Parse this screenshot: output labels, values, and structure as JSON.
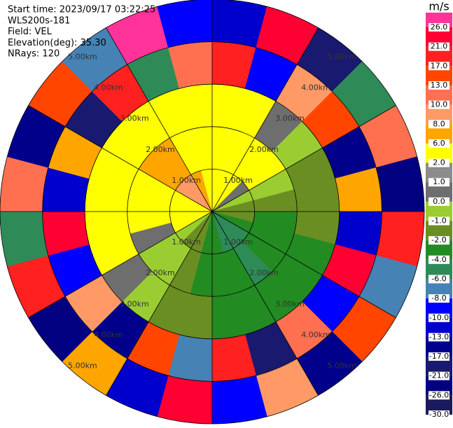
{
  "chart_data": {
    "type": "ppi",
    "header": [
      "Start time: 2023/09/17 03:22:25",
      "WLS200s-181",
      "Field: VEL",
      "Elevation(deg): 35.30",
      "NRays: 120"
    ],
    "azimuth_bins": [
      0,
      15,
      30,
      45,
      60,
      75,
      90,
      105,
      120,
      135,
      150,
      165,
      180,
      195,
      210,
      225,
      240,
      255,
      270,
      285,
      300,
      315,
      330,
      345,
      360
    ],
    "range_bins": [
      0,
      1,
      2,
      3,
      4,
      5
    ],
    "rlim": [
      0,
      5
    ],
    "range_rings": [
      {
        "value": 1,
        "label": "1.00km"
      },
      {
        "value": 2,
        "label": "2.00km"
      },
      {
        "value": 3,
        "label": "3.00km"
      },
      {
        "value": 4,
        "label": "4.00km"
      },
      {
        "value": 5,
        "label": "5.00km"
      }
    ],
    "values": [
      [
        4,
        2,
        2,
        17,
        -13
      ],
      [
        2,
        2,
        2,
        -10,
        21
      ],
      [
        2,
        2,
        0,
        8,
        -21
      ],
      [
        0,
        2,
        -1,
        13,
        -6
      ],
      [
        -1,
        -1,
        -2,
        -17,
        10
      ],
      [
        -2,
        -2,
        -2,
        6,
        -26
      ],
      [
        -2,
        -4,
        -2,
        -13,
        17
      ],
      [
        -4,
        -4,
        -4,
        21,
        -8
      ],
      [
        -6,
        -4,
        -4,
        -10,
        13
      ],
      [
        -6,
        -6,
        -4,
        10,
        -17
      ],
      [
        -6,
        -4,
        -4,
        -21,
        8
      ],
      [
        -4,
        -4,
        -4,
        17,
        -10
      ],
      [
        -4,
        -4,
        -2,
        -8,
        21
      ],
      [
        -2,
        -2,
        -2,
        13,
        -13
      ],
      [
        -2,
        -1,
        -1,
        -17,
        6
      ],
      [
        -1,
        -1,
        0,
        8,
        -26
      ],
      [
        2,
        0,
        2,
        -10,
        17
      ],
      [
        2,
        2,
        2,
        21,
        -6
      ],
      [
        2,
        2,
        2,
        -13,
        10
      ],
      [
        4,
        2,
        2,
        6,
        -17
      ],
      [
        8,
        6,
        2,
        -21,
        13
      ],
      [
        8,
        6,
        2,
        17,
        -8
      ],
      [
        6,
        4,
        2,
        -6,
        26
      ],
      [
        4,
        4,
        2,
        10,
        -10
      ]
    ],
    "colorbar": {
      "unit": "m/s",
      "levels": [
        {
          "value": 26,
          "label": "26.0",
          "color": "#ff3399"
        },
        {
          "value": 21,
          "label": "21.0",
          "color": "#ff0033"
        },
        {
          "value": 17,
          "label": "17.0",
          "color": "#ff2020"
        },
        {
          "value": 13,
          "label": "13.0",
          "color": "#ff4500"
        },
        {
          "value": 10,
          "label": "10.0",
          "color": "#ff7050"
        },
        {
          "value": 8,
          "label": "8.0",
          "color": "#ff9966"
        },
        {
          "value": 6,
          "label": "6.0",
          "color": "#ffa500"
        },
        {
          "value": 2,
          "label": "2.0",
          "color": "#ffff00"
        },
        {
          "value": 1,
          "label": "1.0",
          "color": "#8c8c8c"
        },
        {
          "value": 0,
          "label": "0.0",
          "color": "#6e6e6e"
        },
        {
          "value": -1,
          "label": "-1.0",
          "color": "#9acd32"
        },
        {
          "value": -2,
          "label": "-2.0",
          "color": "#6b8e23"
        },
        {
          "value": -4,
          "label": "-4.0",
          "color": "#228b22"
        },
        {
          "value": -6,
          "label": "-6.0",
          "color": "#2e8b57"
        },
        {
          "value": -8,
          "label": "-8.0",
          "color": "#4682b4"
        },
        {
          "value": -10,
          "label": "-10.0",
          "color": "#0000ff"
        },
        {
          "value": -13,
          "label": "-13.0",
          "color": "#0000cd"
        },
        {
          "value": -17,
          "label": "-17.0",
          "color": "#00008b"
        },
        {
          "value": -21,
          "label": "-21.0",
          "color": "#191970"
        },
        {
          "value": -26,
          "label": "-26.0",
          "color": "#000080"
        },
        {
          "value": -30,
          "label": "-30.0",
          "color": "#1a1a5e"
        }
      ]
    }
  }
}
